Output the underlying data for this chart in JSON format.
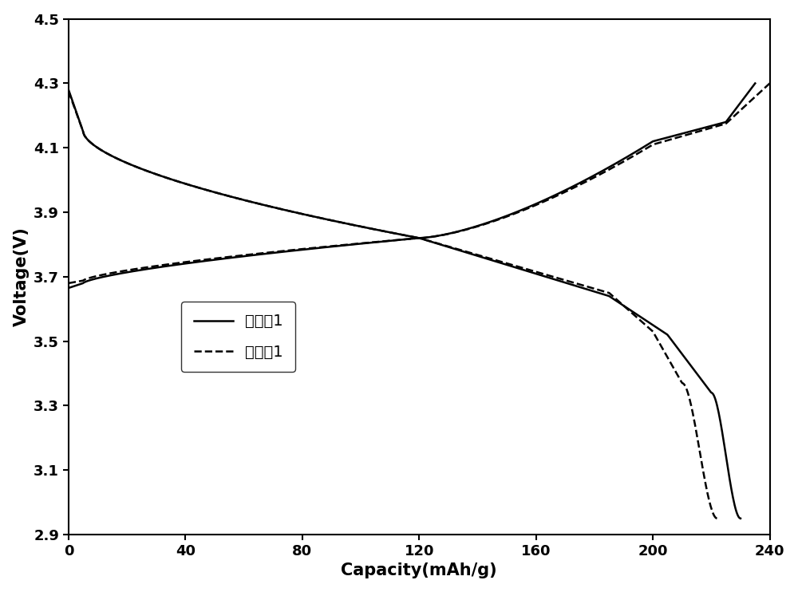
{
  "xlabel": "Capacity(mAh/g)",
  "ylabel": "Voltage(V)",
  "xlim": [
    0,
    240
  ],
  "ylim": [
    2.9,
    4.5
  ],
  "xticks": [
    0,
    40,
    80,
    120,
    160,
    200,
    240
  ],
  "yticks": [
    2.9,
    3.1,
    3.3,
    3.5,
    3.7,
    3.9,
    4.1,
    4.3,
    4.5
  ],
  "legend1": "实施例1",
  "legend2": "对比例1",
  "line_color": "#000000",
  "linewidth": 1.8,
  "figsize": [
    10.0,
    7.42
  ],
  "dpi": 100
}
